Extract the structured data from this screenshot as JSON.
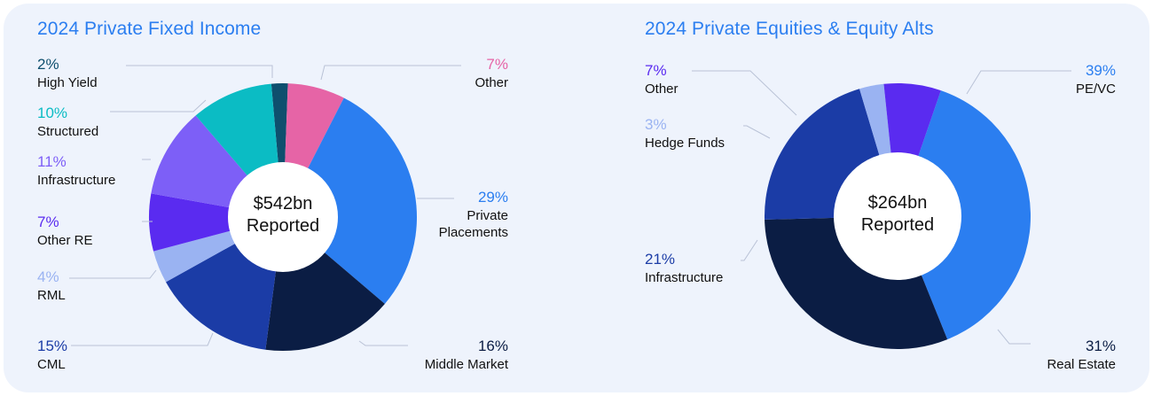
{
  "charts": [
    {
      "title": "2024 Private Fixed Income",
      "center_value": "$542bn",
      "center_label": "Reported",
      "chart_data": {
        "type": "pie",
        "style": "donut",
        "start_angle_deg": -5,
        "slices": [
          {
            "label": "High Yield",
            "pct_text": "2%",
            "value": 2,
            "color": "#0e4f6e",
            "side": "left"
          },
          {
            "label": "Other",
            "pct_text": "7%",
            "value": 7,
            "color": "#e664a6",
            "side": "right"
          },
          {
            "label": "Private Placements",
            "pct_text": "29%",
            "value": 29,
            "color": "#2b7ef0",
            "side": "right"
          },
          {
            "label": "Middle Market",
            "pct_text": "16%",
            "value": 16,
            "color": "#0b1d44",
            "side": "right"
          },
          {
            "label": "CML",
            "pct_text": "15%",
            "value": 15,
            "color": "#1b3ca6",
            "side": "left"
          },
          {
            "label": "RML",
            "pct_text": "4%",
            "value": 4,
            "color": "#9ab3f2",
            "side": "left"
          },
          {
            "label": "Other RE",
            "pct_text": "7%",
            "value": 7,
            "color": "#5a2bf0",
            "side": "left"
          },
          {
            "label": "Infrastructure",
            "pct_text": "11%",
            "value": 11,
            "color": "#7d5ff7",
            "side": "left"
          },
          {
            "label": "Structured",
            "pct_text": "10%",
            "value": 10,
            "color": "#0bbcc4",
            "side": "left"
          }
        ]
      }
    },
    {
      "title": "2024 Private Equities & Equity Alts",
      "center_value": "$264bn",
      "center_label": "Reported",
      "chart_data": {
        "type": "pie",
        "style": "donut",
        "start_angle_deg": 19,
        "slices": [
          {
            "label": "PE/VC",
            "pct_text": "39%",
            "value": 39,
            "color": "#2b7ef0",
            "side": "right"
          },
          {
            "label": "Real Estate",
            "pct_text": "31%",
            "value": 31,
            "color": "#0b1d44",
            "side": "right"
          },
          {
            "label": "Infrastructure",
            "pct_text": "21%",
            "value": 21,
            "color": "#1b3ca6",
            "side": "left"
          },
          {
            "label": "Hedge Funds",
            "pct_text": "3%",
            "value": 3,
            "color": "#9ab3f2",
            "side": "left"
          },
          {
            "label": "Other",
            "pct_text": "7%",
            "value": 7,
            "color": "#5a2bf0",
            "side": "left"
          }
        ]
      }
    }
  ]
}
